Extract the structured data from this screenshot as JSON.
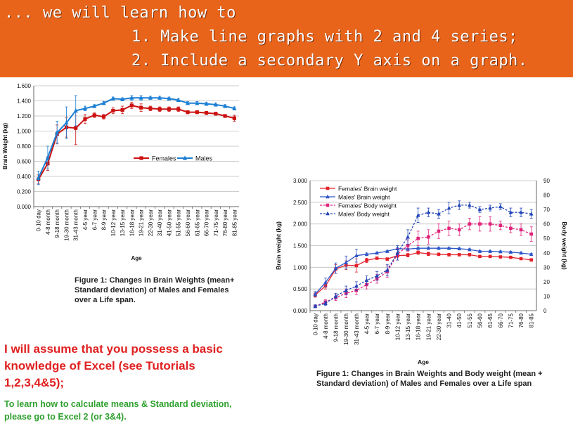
{
  "banner": {
    "line1": "... we will learn how to",
    "line2": "1. Make line graphs with 2 and 4 series;",
    "line3": "2. Include a secondary Y axis on a graph."
  },
  "captions": {
    "chart1": "Figure 1: Changes in Brain Weights (mean+ Standard deviation) of Males and Females over a Life span.",
    "chart2": "Figure 1: Changes in Brain Weights and Body weight (mean + Standard deviation) of Males and Females over a Life span"
  },
  "notes": {
    "red": "I will assume that you possess a basic knowledge of Excel (see Tutorials 1,2,3,4&5);",
    "green": "To learn how to calculate means & Standard deviation, please go to Excel 2 (or 3&4)."
  },
  "colors": {
    "banner": "#e8641b",
    "female": "#cc1111",
    "male": "#1a7fd4",
    "female_body": "#e0237a",
    "male_body": "#2246b8"
  },
  "chart_data": [
    {
      "type": "line",
      "title": "",
      "xlabel": "Age",
      "ylabel": "Brain Weight (kg)",
      "ylim": [
        0,
        1.6
      ],
      "yticks": [
        "0.000",
        "0.200",
        "0.400",
        "0.600",
        "0.800",
        "1.000",
        "1.200",
        "1.400",
        "1.600"
      ],
      "grid": true,
      "legend": "center-right",
      "categories": [
        "0-10 day",
        "4-8 month",
        "9-18 month",
        "19-30 month",
        "31-43 month",
        "4-5 year",
        "6-7 year",
        "8-9 year",
        "10-12 year",
        "13-15 year",
        "16-18 year",
        "19-21 year",
        "22-30 year",
        "31-40 year",
        "41-50 year",
        "51-55 year",
        "56-60 year",
        "61-65 year",
        "66-70 year",
        "71-75 year",
        "76-80 year",
        "81-85 year"
      ],
      "series": [
        {
          "name": "Females",
          "color": "#cc1111",
          "marker": "square",
          "values": [
            0.36,
            0.57,
            0.96,
            1.05,
            1.04,
            1.16,
            1.21,
            1.19,
            1.27,
            1.28,
            1.34,
            1.31,
            1.3,
            1.29,
            1.29,
            1.29,
            1.25,
            1.25,
            1.24,
            1.23,
            1.2,
            1.17
          ],
          "errors": [
            0.06,
            0.09,
            0.12,
            0.13,
            0.22,
            0.06,
            0.03,
            0.03,
            0.04,
            0.05,
            0.04,
            0.05,
            0.03,
            0.03,
            0.03,
            0.03,
            0.02,
            0.02,
            0.02,
            0.02,
            0.02,
            0.04
          ]
        },
        {
          "name": "Males",
          "color": "#1a7fd4",
          "marker": "triangle",
          "values": [
            0.38,
            0.65,
            0.98,
            1.11,
            1.27,
            1.3,
            1.33,
            1.37,
            1.43,
            1.42,
            1.44,
            1.44,
            1.44,
            1.44,
            1.43,
            1.41,
            1.37,
            1.37,
            1.36,
            1.35,
            1.33,
            1.3
          ],
          "errors": [
            0.09,
            0.15,
            0.15,
            0.21,
            0.2,
            0.03,
            0.02,
            0.02,
            0.02,
            0.02,
            0.03,
            0.03,
            0.02,
            0.02,
            0.02,
            0.02,
            0.02,
            0.02,
            0.02,
            0.02,
            0.02,
            0.02
          ]
        }
      ]
    },
    {
      "type": "line",
      "title": "",
      "xlabel": "Age",
      "ylabel": "Brain weight (kg)",
      "y2label": "Body weight (kg)",
      "ylim": [
        0,
        3.0
      ],
      "y2lim": [
        0,
        90
      ],
      "yticks": [
        "0.000",
        "0.500",
        "1.000",
        "1.500",
        "2.000",
        "2.500",
        "3.000"
      ],
      "y2ticks": [
        "0",
        "10",
        "20",
        "30",
        "40",
        "50",
        "60",
        "70",
        "80",
        "90"
      ],
      "grid": true,
      "legend": "top-left",
      "categories": [
        "0-10 day",
        "4-8 month",
        "9-18 month",
        "19-30 month",
        "31-43 month",
        "4-5 year",
        "6-7 year",
        "8-9 year",
        "10-12 year",
        "13-15 year",
        "16-18 year",
        "19-21 year",
        "22-30 year",
        "31-40",
        "41-50",
        "51-55",
        "56-60",
        "61-65",
        "66-70",
        "71-75",
        "76-80",
        "81-85"
      ],
      "series": [
        {
          "name": "Females' Brain weight",
          "axis": "left",
          "color": "#e3202a",
          "marker": "square",
          "dash": false,
          "values": [
            0.36,
            0.57,
            0.96,
            1.05,
            1.04,
            1.16,
            1.21,
            1.19,
            1.27,
            1.28,
            1.34,
            1.31,
            1.3,
            1.29,
            1.29,
            1.29,
            1.25,
            1.25,
            1.24,
            1.23,
            1.2,
            1.17
          ],
          "errors": [
            0.05,
            0.07,
            0.1,
            0.1,
            0.15,
            0.05,
            0.03,
            0.03,
            0.04,
            0.04,
            0.04,
            0.04,
            0.03,
            0.03,
            0.03,
            0.03,
            0.02,
            0.02,
            0.02,
            0.02,
            0.02,
            0.03
          ]
        },
        {
          "name": "Males' Brain weight",
          "axis": "left",
          "color": "#2d55c8",
          "marker": "triangle",
          "dash": false,
          "values": [
            0.38,
            0.65,
            0.98,
            1.11,
            1.27,
            1.3,
            1.33,
            1.37,
            1.43,
            1.42,
            1.44,
            1.44,
            1.44,
            1.44,
            1.43,
            1.41,
            1.37,
            1.37,
            1.36,
            1.35,
            1.33,
            1.3
          ],
          "errors": [
            0.06,
            0.1,
            0.12,
            0.15,
            0.15,
            0.03,
            0.02,
            0.02,
            0.02,
            0.02,
            0.03,
            0.03,
            0.02,
            0.02,
            0.02,
            0.02,
            0.02,
            0.02,
            0.02,
            0.02,
            0.02,
            0.02
          ]
        },
        {
          "name": "Females' Body weight",
          "axis": "right",
          "color": "#e0237a",
          "marker": "square",
          "dash": true,
          "values": [
            3,
            6,
            9,
            12,
            14,
            18,
            22,
            27,
            39,
            45,
            50,
            51,
            55,
            57,
            56,
            60,
            60,
            60,
            59,
            57,
            56,
            53
          ],
          "errors": [
            1,
            1.5,
            2,
            3,
            3,
            3,
            3,
            4,
            4,
            4,
            5,
            5,
            5,
            5,
            4,
            4,
            5,
            5,
            3,
            3,
            4,
            5
          ]
        },
        {
          "name": "Males' Body weight",
          "axis": "right",
          "color": "#2246b8",
          "marker": "triangle",
          "dash": true,
          "values": [
            3,
            5,
            10,
            14,
            17,
            21,
            24,
            28,
            40,
            51,
            66,
            68,
            67,
            71,
            73,
            73,
            70,
            71,
            72,
            68,
            68,
            67
          ],
          "errors": [
            1,
            1.5,
            2,
            3,
            3,
            3,
            3,
            4,
            5,
            5,
            5,
            3,
            3,
            4,
            3,
            2,
            2,
            2,
            2,
            3,
            3,
            3
          ]
        }
      ]
    }
  ]
}
